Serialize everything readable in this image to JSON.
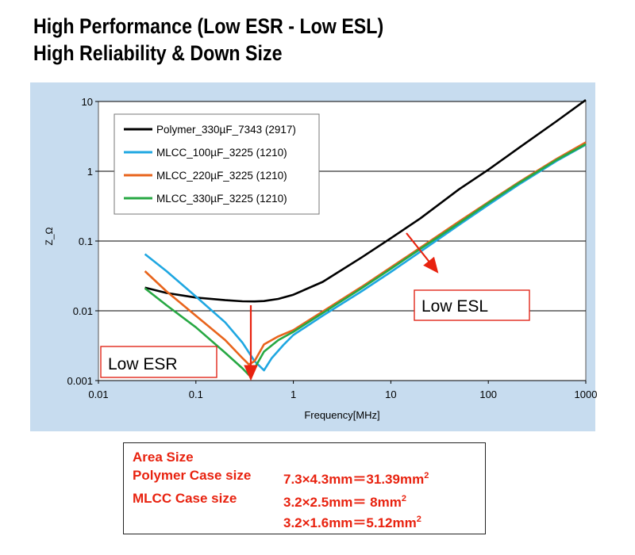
{
  "headline": {
    "line1": "High Performance (Low ESR - Low ESL)",
    "line2": "High Reliability & Down Size"
  },
  "chart_data": {
    "type": "line",
    "xscale": "log",
    "yscale": "log",
    "xlim": [
      0.01,
      1000
    ],
    "ylim": [
      0.001,
      10
    ],
    "xlabel": "Frequency[MHz]",
    "ylabel": "Z_Ω",
    "x_ticks": [
      "0.01",
      "0.1",
      "1",
      "10",
      "100",
      "1000"
    ],
    "y_ticks": [
      "0.001",
      "0.01",
      "0.1",
      "1",
      "10"
    ],
    "grid": "horizontal",
    "legend_position": "top-left",
    "series": [
      {
        "name": "Polymer_330µF_7343 (2917)",
        "color": "#000000",
        "x": [
          0.03,
          0.05,
          0.1,
          0.2,
          0.3,
          0.4,
          0.5,
          0.7,
          1,
          2,
          5,
          10,
          20,
          50,
          100,
          200,
          500,
          1000
        ],
        "y": [
          0.0215,
          0.018,
          0.0155,
          0.0142,
          0.0137,
          0.0136,
          0.0138,
          0.0148,
          0.017,
          0.026,
          0.058,
          0.11,
          0.21,
          0.55,
          1.05,
          2.1,
          5.2,
          10.5
        ]
      },
      {
        "name": "MLCC_100µF_3225 (1210)",
        "color": "#1fa7e1",
        "x": [
          0.03,
          0.05,
          0.1,
          0.2,
          0.3,
          0.4,
          0.5,
          0.6,
          0.8,
          1,
          2,
          5,
          10,
          20,
          50,
          100,
          200,
          500,
          1000
        ],
        "y": [
          0.065,
          0.037,
          0.016,
          0.0068,
          0.0035,
          0.0019,
          0.0014,
          0.0021,
          0.0033,
          0.0045,
          0.0085,
          0.019,
          0.036,
          0.07,
          0.17,
          0.33,
          0.63,
          1.4,
          2.4
        ]
      },
      {
        "name": "MLCC_220µF_3225 (1210)",
        "color": "#e8641c",
        "x": [
          0.03,
          0.05,
          0.1,
          0.2,
          0.3,
          0.35,
          0.4,
          0.5,
          0.7,
          1,
          2,
          5,
          10,
          20,
          50,
          100,
          200,
          500,
          1000
        ],
        "y": [
          0.037,
          0.019,
          0.0085,
          0.0038,
          0.0021,
          0.0017,
          0.0019,
          0.0033,
          0.0043,
          0.0053,
          0.0098,
          0.022,
          0.042,
          0.08,
          0.19,
          0.36,
          0.68,
          1.5,
          2.6
        ]
      },
      {
        "name": "MLCC_330µF_3225 (1210)",
        "color": "#27a843",
        "x": [
          0.03,
          0.05,
          0.1,
          0.2,
          0.3,
          0.35,
          0.4,
          0.5,
          0.7,
          1,
          2,
          5,
          10,
          20,
          50,
          100,
          200,
          500,
          1000
        ],
        "y": [
          0.021,
          0.012,
          0.0058,
          0.0025,
          0.0015,
          0.0012,
          0.0015,
          0.0026,
          0.0038,
          0.005,
          0.0093,
          0.021,
          0.04,
          0.077,
          0.18,
          0.35,
          0.66,
          1.45,
          2.45
        ]
      }
    ],
    "annotations": [
      {
        "text": "Low ESR",
        "arrow_color": "#e8220f"
      },
      {
        "text": "Low ESL",
        "arrow_color": "#e8220f"
      }
    ]
  },
  "area_size": {
    "title": "Area Size",
    "polymer_label": "Polymer Case size",
    "polymer_value": "7.3×4.3mm＝31.39mm",
    "mlcc_label": "MLCC Case size",
    "mlcc_value_1": "3.2×2.5mm＝  8mm",
    "mlcc_value_2": "3.2×1.6mm＝5.12mm",
    "superscript": "2"
  }
}
